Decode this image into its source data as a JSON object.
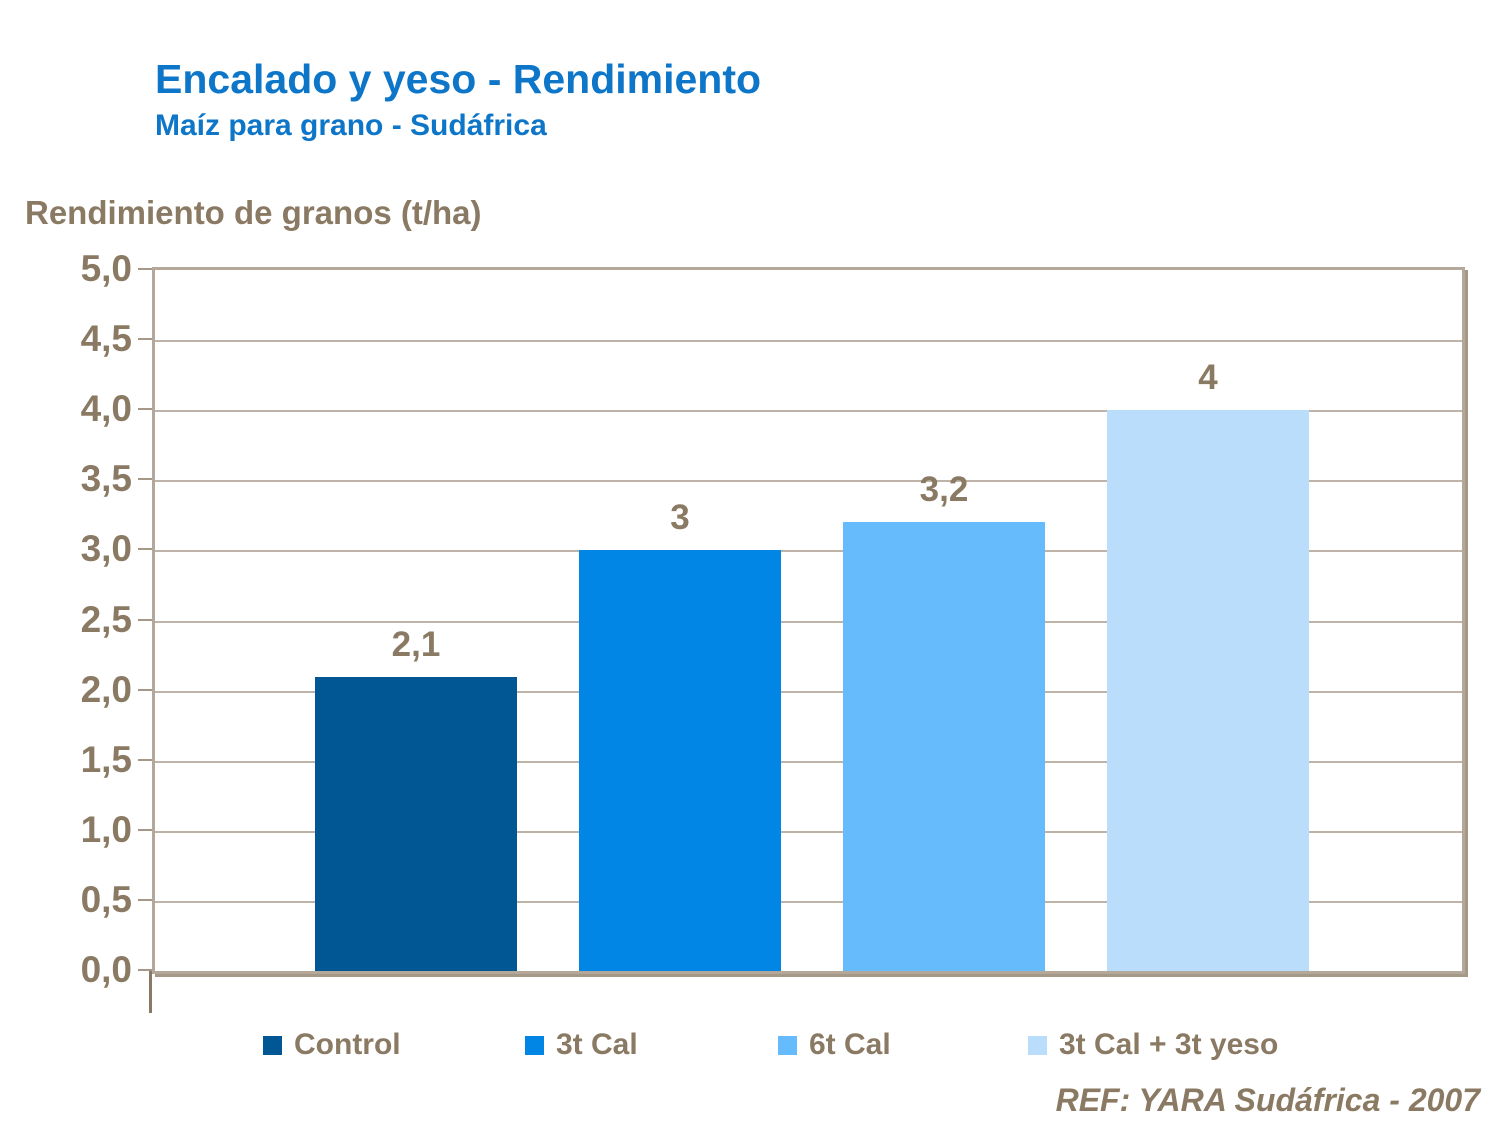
{
  "slide": {
    "title": "Encalado y yeso - Rendimiento",
    "subtitle": "Maíz para grano - Sudáfrica",
    "axis_title": "Rendimiento de granos (t/ha)",
    "reference": "REF: YARA Sudáfrica - 2007"
  },
  "colors": {
    "title_blue": "#0d76c8",
    "text_brown": "#8a7a63",
    "grid_tan": "#beb3a6",
    "plot_border": "#b4a89b"
  },
  "chart_data": {
    "type": "bar",
    "title": "Encalado y yeso - Rendimiento",
    "subtitle": "Maíz para grano - Sudáfrica",
    "categories": [
      "Control",
      "3t Cal",
      "6t Cal",
      "3t Cal + 3t yeso"
    ],
    "values": [
      2.1,
      3,
      3.2,
      4
    ],
    "value_labels": [
      "2,1",
      "3",
      "3,2",
      "4"
    ],
    "bar_colors": [
      "#015794",
      "#0286e5",
      "#66bbfc",
      "#b9ddfb"
    ],
    "xlabel": "",
    "ylabel": "Rendimiento de granos (t/ha)",
    "ylim": [
      0,
      5
    ],
    "ytick_step": 0.5,
    "ytick_labels": [
      "0,0",
      "0,5",
      "1,0",
      "1,5",
      "2,0",
      "2,5",
      "3,0",
      "3,5",
      "4,0",
      "4,5",
      "5,0"
    ],
    "grid": true,
    "legend_position": "bottom",
    "annotation": "REF: YARA Sudáfrica - 2007"
  }
}
